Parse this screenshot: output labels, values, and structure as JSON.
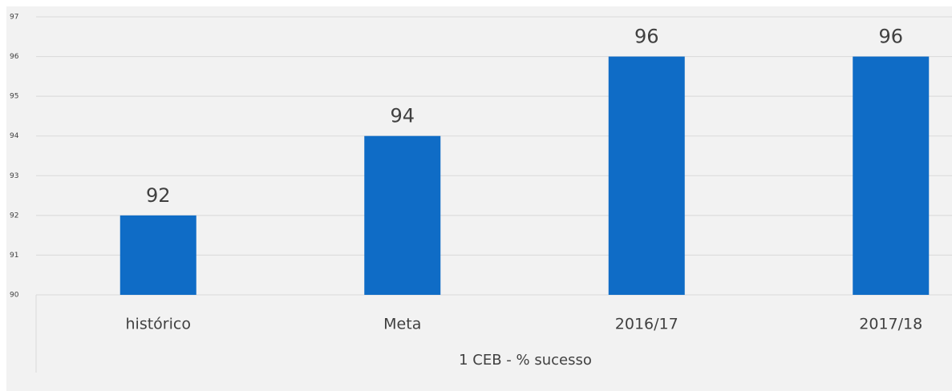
{
  "chart_data": {
    "type": "bar",
    "x_label": "1 CEB - % sucesso",
    "categories": [
      "histórico",
      "Meta",
      "2016/17",
      "2017/18"
    ],
    "values": [
      92,
      94,
      96,
      96
    ],
    "color": "#0f6cc6",
    "ylim": [
      90,
      97
    ],
    "yticks": [
      90,
      91,
      92,
      93,
      94,
      95,
      96,
      97
    ],
    "grid": true,
    "data_labels": true
  }
}
